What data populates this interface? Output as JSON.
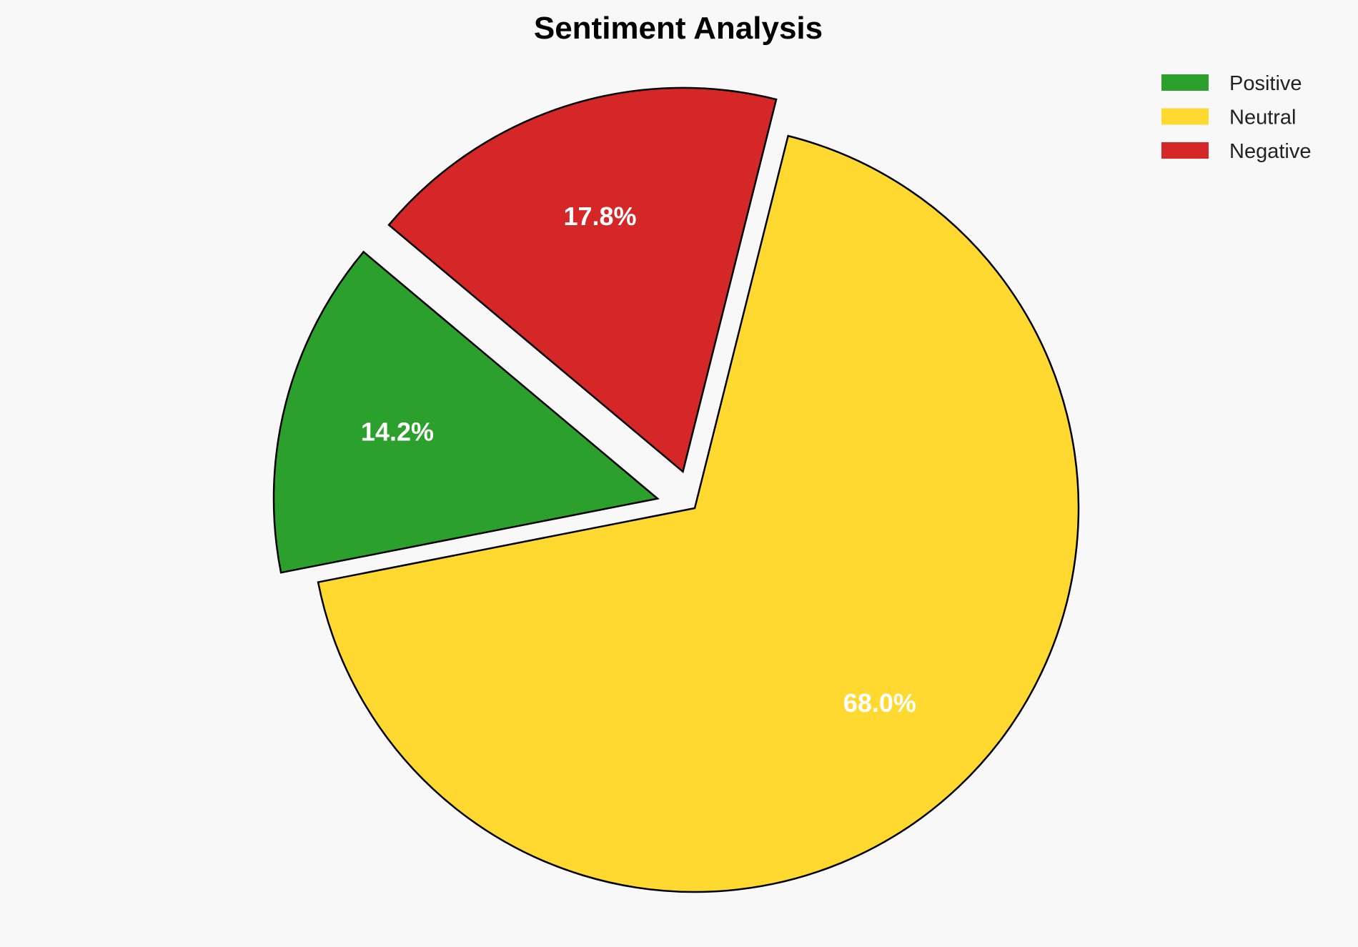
{
  "chart_data": {
    "type": "pie",
    "title": "Sentiment Analysis",
    "categories": [
      "Positive",
      "Neutral",
      "Negative"
    ],
    "values": [
      14.2,
      68.0,
      17.8
    ],
    "labels": [
      "14.2%",
      "68.0%",
      "17.8%"
    ],
    "colors": [
      "#2ca02c",
      "#ffd92f",
      "#d62728"
    ],
    "explode": [
      0.1,
      0,
      0.1
    ],
    "start_angle": 140,
    "direction": "counterclockwise",
    "legend_position": "top-right",
    "background": "#f8f8f8",
    "edge_color": "#000000"
  }
}
